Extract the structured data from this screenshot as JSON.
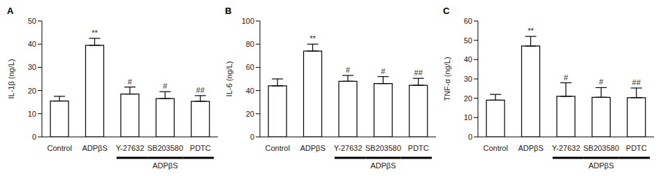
{
  "chart_data": [
    {
      "type": "bar",
      "panel": "A",
      "ylabel": "IL-1β (ng/L)",
      "categories": [
        "Control",
        "ADPβS",
        "Y-27632",
        "SB203580",
        "PDTC"
      ],
      "values": [
        15.5,
        39.5,
        18.5,
        16.5,
        15.3
      ],
      "errors": [
        2,
        3,
        3,
        3,
        2.5
      ],
      "significance": [
        null,
        "**",
        "#",
        "#",
        "##"
      ],
      "group": {
        "label": "ADPβS",
        "categories": [
          "Y-27632",
          "SB203580",
          "PDTC"
        ]
      },
      "ylim": [
        0,
        50
      ],
      "yticks": [
        0,
        10,
        20,
        30,
        40,
        50
      ],
      "color": "#ffffff",
      "grid": false
    },
    {
      "type": "bar",
      "panel": "B",
      "ylabel": "IL-6 (ng/L)",
      "categories": [
        "Control",
        "ADPβS",
        "Y-27632",
        "SB203580",
        "PDTC"
      ],
      "values": [
        44,
        74,
        48,
        46,
        44.5
      ],
      "errors": [
        6,
        6,
        5,
        6,
        6
      ],
      "significance": [
        null,
        "**",
        "#",
        "#",
        "##"
      ],
      "group": {
        "label": "ADPβS",
        "categories": [
          "Y-27632",
          "SB203580",
          "PDTC"
        ]
      },
      "ylim": [
        0,
        100
      ],
      "yticks": [
        0,
        20,
        40,
        60,
        80,
        100
      ],
      "color": "#ffffff",
      "grid": false
    },
    {
      "type": "bar",
      "panel": "C",
      "ylabel": "TNF-α (ng/L)",
      "categories": [
        "Control",
        "ADPβS",
        "Y-27632",
        "SB203580",
        "PDTC"
      ],
      "values": [
        19,
        47,
        21,
        20.5,
        20.3
      ],
      "errors": [
        3,
        5,
        7,
        5,
        5
      ],
      "significance": [
        null,
        "**",
        "#",
        "#",
        "##"
      ],
      "group": {
        "label": "ADPβS",
        "categories": [
          "Y-27632",
          "SB203580",
          "PDTC"
        ]
      },
      "ylim": [
        0,
        60
      ],
      "yticks": [
        0,
        10,
        20,
        30,
        40,
        50,
        60
      ],
      "color": "#ffffff",
      "grid": false
    }
  ]
}
